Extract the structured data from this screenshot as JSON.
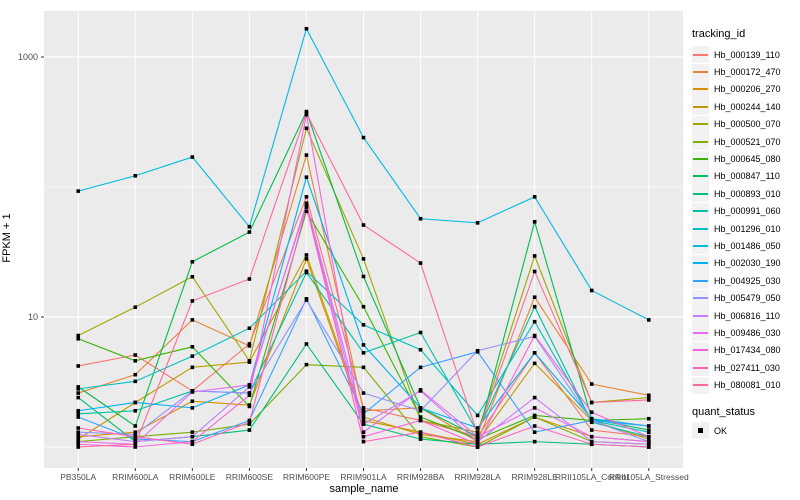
{
  "figure": {
    "colors": {
      "panel_bg": "#EBEBEB",
      "grid": "#FFFFFF",
      "tick_text": "#4D4D4D",
      "axis_text": "#000000",
      "legend_key_bg": "#F2F2F2",
      "point": "#000000"
    }
  },
  "legend": {
    "tracking_title": "tracking_id",
    "quant_title": "quant_status",
    "quant_ok_label": "OK"
  },
  "chart_data": {
    "type": "line",
    "title": "",
    "x_label": "sample_name",
    "y_label": "FPKM + 1",
    "y_scale": "log10",
    "y_axis_tick_labels": [
      "1000",
      "10"
    ],
    "y_axis_tick_values": [
      1000,
      10
    ],
    "y_minor_gridline_values": [
      1,
      100
    ],
    "ylim": [
      0.85,
      2000
    ],
    "grid": "on",
    "legend_position": "right",
    "marker": "small-black-square",
    "categories": [
      "PB350LA",
      "RRIM600LA",
      "RRIM600LE",
      "RRIM600SE",
      "RRIM600PE",
      "RRIM901LA",
      "RRIM928BA",
      "RRIM928LA",
      "RRIM928LE",
      "RRII105LA_Control",
      "RRII105LA_Stressed"
    ],
    "series": [
      {
        "name": "Hb_000139_110",
        "color": "#F8766D",
        "values": [
          4.2,
          5.1,
          2.7,
          6.2,
          84,
          2.0,
          1.6,
          1.2,
          5.3,
          1.35,
          1.2
        ]
      },
      {
        "name": "Hb_000172_470",
        "color": "#EA8331",
        "values": [
          2.6,
          3.6,
          9.5,
          6.0,
          176,
          1.9,
          2.0,
          1.1,
          14.2,
          3.05,
          2.5
        ]
      },
      {
        "name": "Hb_000206_270",
        "color": "#D89000",
        "values": [
          1.2,
          1.3,
          2.25,
          2.1,
          28,
          1.6,
          1.3,
          1.05,
          1.7,
          1.2,
          1.1
        ]
      },
      {
        "name": "Hb_000244_140",
        "color": "#C09B00",
        "values": [
          1.15,
          2.2,
          4.1,
          4.5,
          30,
          1.7,
          1.25,
          1.1,
          4.4,
          1.6,
          1.15
        ]
      },
      {
        "name": "Hb_000500_070",
        "color": "#A3A500",
        "values": [
          7.2,
          11.9,
          20.4,
          4.6,
          283,
          28,
          1.6,
          1.3,
          29.5,
          2.2,
          2.4
        ]
      },
      {
        "name": "Hb_000521_070",
        "color": "#7CAE00",
        "values": [
          1.1,
          1.2,
          1.3,
          1.5,
          4.3,
          4.1,
          1.2,
          1.0,
          1.7,
          1.1,
          1.05
        ]
      },
      {
        "name": "Hb_000645_080",
        "color": "#39B600",
        "values": [
          6.8,
          4.6,
          5.9,
          2.05,
          65,
          12,
          1.7,
          1.15,
          1.75,
          1.6,
          1.65
        ]
      },
      {
        "name": "Hb_000847_110",
        "color": "#00BB4E",
        "values": [
          2.9,
          1.45,
          26.6,
          45,
          380,
          20.5,
          2.0,
          1.2,
          54,
          1.65,
          1.35
        ]
      },
      {
        "name": "Hb_000893_010",
        "color": "#00BF7D",
        "values": [
          2.4,
          1.1,
          1.2,
          1.35,
          6.2,
          1.5,
          1.15,
          1.05,
          1.1,
          1.05,
          1.0
        ]
      },
      {
        "name": "Hb_000991_060",
        "color": "#00C1A3",
        "values": [
          1.8,
          1.9,
          2.7,
          2.6,
          22,
          5.3,
          7.6,
          1.3,
          12,
          1.55,
          1.2
        ]
      },
      {
        "name": "Hb_001296_010",
        "color": "#00BFC4",
        "values": [
          2.8,
          3.2,
          5.0,
          8.2,
          22.5,
          8.7,
          5.6,
          1.75,
          9.2,
          1.6,
          1.3
        ]
      },
      {
        "name": "Hb_001486_050",
        "color": "#00BAE0",
        "values": [
          93,
          122,
          170,
          49.5,
          1650,
          240,
          57,
          53,
          84,
          16,
          9.5
        ]
      },
      {
        "name": "Hb_002030_190",
        "color": "#00B0F6",
        "values": [
          1.9,
          2.2,
          2.0,
          3.0,
          119,
          6.1,
          2.0,
          1.4,
          5.3,
          1.65,
          1.45
        ]
      },
      {
        "name": "Hb_004925_030",
        "color": "#35A2FF",
        "values": [
          1.7,
          1.15,
          1.1,
          1.6,
          13.8,
          1.8,
          4.1,
          5.4,
          1.3,
          1.6,
          1.45
        ]
      },
      {
        "name": "Hb_005479_050",
        "color": "#9590FF",
        "values": [
          1.3,
          1.25,
          2.7,
          2.6,
          13.5,
          2.6,
          1.9,
          5.5,
          7.1,
          1.6,
          1.1
        ]
      },
      {
        "name": "Hb_006816_110",
        "color": "#C77CFF",
        "values": [
          1.25,
          1.1,
          1.2,
          2.9,
          75,
          1.5,
          2.7,
          1.1,
          2.4,
          1.1,
          1.05
        ]
      },
      {
        "name": "Hb_009486_030",
        "color": "#E76BF3",
        "values": [
          1.1,
          1.05,
          2.65,
          3.0,
          72,
          1.3,
          2.75,
          1.2,
          2.0,
          1.2,
          1.1
        ]
      },
      {
        "name": "Hb_017434_080",
        "color": "#FA62DB",
        "values": [
          1.05,
          1.0,
          1.1,
          2.5,
          360,
          1.2,
          1.6,
          1.05,
          7.2,
          1.85,
          1.2
        ]
      },
      {
        "name": "Hb_027411_030",
        "color": "#FF62BC",
        "values": [
          1.4,
          1.2,
          1.05,
          1.55,
          70,
          1.1,
          1.3,
          1.0,
          1.45,
          1.05,
          1.0
        ]
      },
      {
        "name": "Hb_080081_010",
        "color": "#FF6A98",
        "values": [
          1.0,
          1.05,
          13.3,
          19.6,
          370,
          51,
          26,
          1.25,
          22.4,
          2.2,
          2.3
        ]
      }
    ]
  }
}
